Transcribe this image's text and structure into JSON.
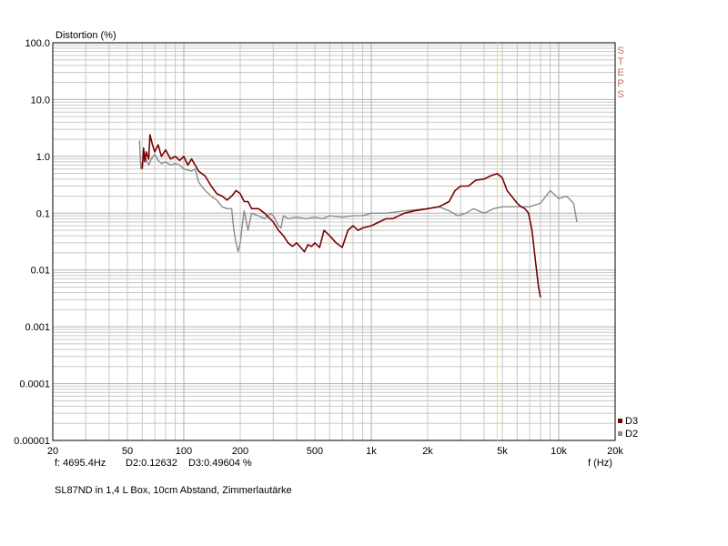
{
  "chart_data": {
    "type": "line",
    "ylabel": "Distortion (%)",
    "xlabel": "f (Hz)",
    "x_scale": "log",
    "y_scale": "log",
    "xlim": [
      20,
      20000
    ],
    "ylim": [
      1e-05,
      100
    ],
    "x_ticks": [
      {
        "value": 20,
        "label": "20"
      },
      {
        "value": 50,
        "label": "50"
      },
      {
        "value": 100,
        "label": "100"
      },
      {
        "value": 200,
        "label": "200"
      },
      {
        "value": 500,
        "label": "500"
      },
      {
        "value": 1000,
        "label": "1k"
      },
      {
        "value": 2000,
        "label": "2k"
      },
      {
        "value": 5000,
        "label": "5k"
      },
      {
        "value": 10000,
        "label": "10k"
      },
      {
        "value": 20000,
        "label": "20k"
      }
    ],
    "y_ticks": [
      {
        "value": 100,
        "label": "100.0"
      },
      {
        "value": 10,
        "label": "10.0"
      },
      {
        "value": 1,
        "label": "1.0"
      },
      {
        "value": 0.1,
        "label": "0.1"
      },
      {
        "value": 0.01,
        "label": "0.01"
      },
      {
        "value": 0.001,
        "label": "0.001"
      },
      {
        "value": 0.0001,
        "label": "0.0001"
      },
      {
        "value": 1e-05,
        "label": "0.00001"
      }
    ],
    "grid": true,
    "legend_position": "bottom-right",
    "side_label": [
      "S",
      "T",
      "E",
      "P",
      "S"
    ],
    "cursor_frequency": 4695.4,
    "colors": {
      "D3": "#7a0000",
      "D2": "#8c8c8c",
      "grid": "#c8c8c8",
      "cursor": "#e6d98a",
      "side_label": "#c07060"
    },
    "series": [
      {
        "name": "D3",
        "points": [
          [
            60,
            0.6
          ],
          [
            61,
            1.4
          ],
          [
            62,
            0.8
          ],
          [
            63,
            1.2
          ],
          [
            65,
            0.9
          ],
          [
            66,
            2.4
          ],
          [
            68,
            1.6
          ],
          [
            70,
            1.2
          ],
          [
            73,
            1.6
          ],
          [
            76,
            1.0
          ],
          [
            80,
            1.3
          ],
          [
            85,
            0.9
          ],
          [
            90,
            1.0
          ],
          [
            95,
            0.85
          ],
          [
            100,
            1.0
          ],
          [
            105,
            0.7
          ],
          [
            110,
            0.9
          ],
          [
            115,
            0.7
          ],
          [
            120,
            0.55
          ],
          [
            130,
            0.45
          ],
          [
            140,
            0.3
          ],
          [
            150,
            0.22
          ],
          [
            160,
            0.2
          ],
          [
            170,
            0.17
          ],
          [
            180,
            0.2
          ],
          [
            190,
            0.25
          ],
          [
            200,
            0.22
          ],
          [
            210,
            0.16
          ],
          [
            220,
            0.16
          ],
          [
            230,
            0.12
          ],
          [
            250,
            0.12
          ],
          [
            270,
            0.1
          ],
          [
            300,
            0.07
          ],
          [
            320,
            0.05
          ],
          [
            340,
            0.04
          ],
          [
            360,
            0.03
          ],
          [
            380,
            0.026
          ],
          [
            400,
            0.03
          ],
          [
            420,
            0.025
          ],
          [
            440,
            0.021
          ],
          [
            460,
            0.028
          ],
          [
            480,
            0.026
          ],
          [
            500,
            0.03
          ],
          [
            530,
            0.025
          ],
          [
            560,
            0.05
          ],
          [
            600,
            0.04
          ],
          [
            650,
            0.03
          ],
          [
            700,
            0.025
          ],
          [
            750,
            0.05
          ],
          [
            800,
            0.06
          ],
          [
            850,
            0.05
          ],
          [
            900,
            0.055
          ],
          [
            1000,
            0.06
          ],
          [
            1100,
            0.07
          ],
          [
            1200,
            0.08
          ],
          [
            1300,
            0.08
          ],
          [
            1500,
            0.1
          ],
          [
            1700,
            0.11
          ],
          [
            2000,
            0.12
          ],
          [
            2300,
            0.13
          ],
          [
            2600,
            0.16
          ],
          [
            2800,
            0.25
          ],
          [
            3000,
            0.3
          ],
          [
            3300,
            0.3
          ],
          [
            3600,
            0.38
          ],
          [
            4000,
            0.4
          ],
          [
            4300,
            0.45
          ],
          [
            4700,
            0.5
          ],
          [
            5000,
            0.42
          ],
          [
            5300,
            0.25
          ],
          [
            5600,
            0.2
          ],
          [
            6000,
            0.15
          ],
          [
            6300,
            0.13
          ],
          [
            6600,
            0.12
          ],
          [
            6900,
            0.1
          ],
          [
            7200,
            0.05
          ],
          [
            7500,
            0.015
          ],
          [
            7800,
            0.005
          ],
          [
            8000,
            0.0033
          ]
        ]
      },
      {
        "name": "D2",
        "points": [
          [
            58,
            1.9
          ],
          [
            59,
            0.6
          ],
          [
            60,
            0.8
          ],
          [
            62,
            1.0
          ],
          [
            65,
            0.7
          ],
          [
            67,
            0.9
          ],
          [
            70,
            1.1
          ],
          [
            73,
            0.85
          ],
          [
            76,
            0.75
          ],
          [
            80,
            0.8
          ],
          [
            85,
            0.7
          ],
          [
            90,
            0.75
          ],
          [
            95,
            0.7
          ],
          [
            100,
            0.6
          ],
          [
            110,
            0.55
          ],
          [
            115,
            0.6
          ],
          [
            120,
            0.35
          ],
          [
            130,
            0.25
          ],
          [
            140,
            0.2
          ],
          [
            150,
            0.17
          ],
          [
            160,
            0.13
          ],
          [
            170,
            0.12
          ],
          [
            180,
            0.12
          ],
          [
            185,
            0.05
          ],
          [
            190,
            0.03
          ],
          [
            195,
            0.021
          ],
          [
            200,
            0.03
          ],
          [
            205,
            0.06
          ],
          [
            210,
            0.11
          ],
          [
            220,
            0.05
          ],
          [
            230,
            0.1
          ],
          [
            250,
            0.09
          ],
          [
            270,
            0.08
          ],
          [
            290,
            0.1
          ],
          [
            300,
            0.09
          ],
          [
            320,
            0.06
          ],
          [
            330,
            0.055
          ],
          [
            340,
            0.09
          ],
          [
            360,
            0.08
          ],
          [
            400,
            0.085
          ],
          [
            450,
            0.08
          ],
          [
            500,
            0.085
          ],
          [
            550,
            0.08
          ],
          [
            600,
            0.09
          ],
          [
            700,
            0.085
          ],
          [
            800,
            0.09
          ],
          [
            900,
            0.09
          ],
          [
            1000,
            0.1
          ],
          [
            1200,
            0.1
          ],
          [
            1500,
            0.11
          ],
          [
            2000,
            0.12
          ],
          [
            2300,
            0.13
          ],
          [
            2600,
            0.11
          ],
          [
            2900,
            0.09
          ],
          [
            3200,
            0.1
          ],
          [
            3500,
            0.12
          ],
          [
            4000,
            0.1
          ],
          [
            4500,
            0.12
          ],
          [
            5000,
            0.13
          ],
          [
            6000,
            0.13
          ],
          [
            7000,
            0.13
          ],
          [
            8000,
            0.15
          ],
          [
            9000,
            0.25
          ],
          [
            10000,
            0.18
          ],
          [
            11000,
            0.2
          ],
          [
            12000,
            0.15
          ],
          [
            12500,
            0.07
          ]
        ]
      }
    ]
  },
  "readout": {
    "frequency": "f: 4695.4Hz",
    "d2": "D2:0.12632",
    "d3": "D3:0.49604 %"
  },
  "caption": "SL87ND in 1,4 L Box, 10cm Abstand, Zimmerlautärke"
}
